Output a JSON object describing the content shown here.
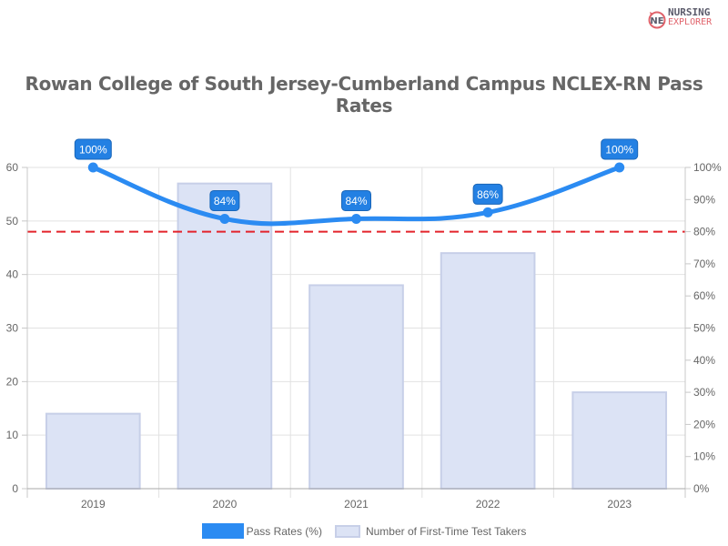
{
  "logo": {
    "line1": "NURSING",
    "line2": "EXPLORER"
  },
  "chart_data": {
    "type": "bar+line",
    "title": "Rowan College of South Jersey-Cumberland Campus NCLEX-RN Pass Rates",
    "categories": [
      "2019",
      "2020",
      "2021",
      "2022",
      "2023"
    ],
    "series": [
      {
        "name": "Pass Rates (%)",
        "type": "line",
        "axis": "right",
        "values": [
          100,
          84,
          84,
          86,
          100
        ],
        "labels": [
          "100%",
          "84%",
          "84%",
          "86%",
          "100%"
        ],
        "color": "#2b8bf2"
      },
      {
        "name": "Number of First-Time Test Takers",
        "type": "bar",
        "axis": "left",
        "values": [
          14,
          57,
          38,
          44,
          18
        ],
        "color": "#dce3f5",
        "border": "#c7cfe8"
      }
    ],
    "reference_line": {
      "value": 80,
      "axis": "right",
      "style": "dashed",
      "color": "#e3232b"
    },
    "left_axis": {
      "ylim": [
        0,
        60
      ],
      "ticks": [
        "0",
        "10",
        "20",
        "30",
        "40",
        "50",
        "60"
      ]
    },
    "right_axis": {
      "ylim": [
        0,
        100
      ],
      "ticks": [
        "0%",
        "10%",
        "20%",
        "30%",
        "40%",
        "50%",
        "60%",
        "70%",
        "80%",
        "90%",
        "100%"
      ]
    },
    "xlabel": "",
    "ylabel": "",
    "grid": true,
    "legend_position": "bottom"
  },
  "legend": {
    "items": [
      {
        "label": "Pass Rates (%)"
      },
      {
        "label": "Number of First-Time Test Takers"
      }
    ]
  }
}
